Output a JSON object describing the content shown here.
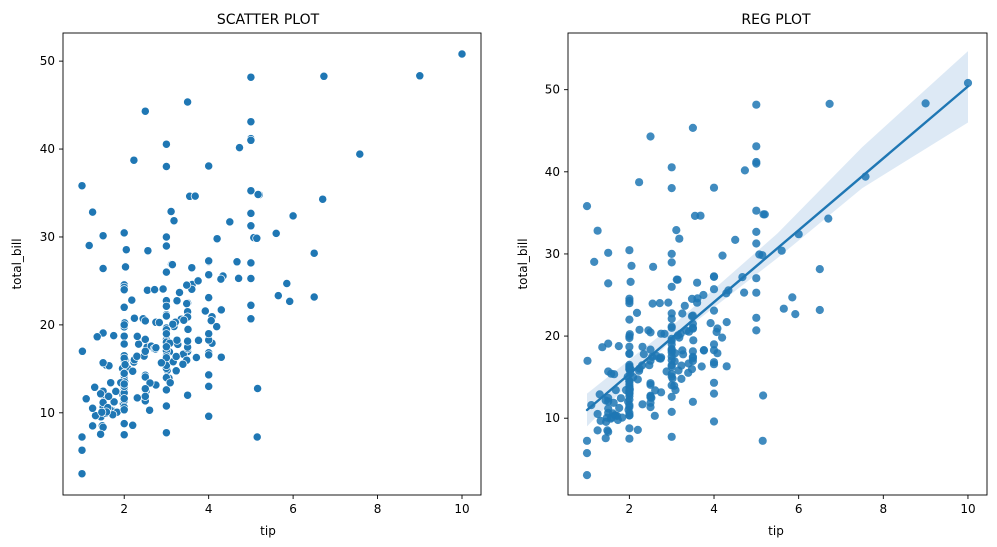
{
  "chart_data": [
    {
      "type": "scatter",
      "title": "SCATTER PLOT",
      "xlabel": "tip",
      "ylabel": "total_bill",
      "xlim": [
        0.55,
        10.45
      ],
      "ylim": [
        0.65,
        53.2
      ],
      "xticks": [
        "2",
        "4",
        "6",
        "8",
        "10"
      ],
      "yticks": [
        "10",
        "20",
        "30",
        "40",
        "50"
      ],
      "grid": false,
      "color": "#1f77b4",
      "marker_edge": "#ffffff",
      "regression": null,
      "points": []
    },
    {
      "type": "scatter",
      "title": "REG PLOT",
      "xlabel": "tip",
      "ylabel": "total_bill",
      "xlim": [
        0.55,
        10.45
      ],
      "ylim": [
        0.65,
        56.9
      ],
      "xticks": [
        "2",
        "4",
        "6",
        "8",
        "10"
      ],
      "yticks": [
        "10",
        "20",
        "30",
        "40",
        "50"
      ],
      "grid": false,
      "color": "#1f77b4",
      "marker_edge": "#1f77b4",
      "regression": {
        "x": [
          1.0,
          10.0
        ],
        "y": [
          11.0,
          50.4
        ],
        "ci_lower": [
          [
            1.0,
            9.0
          ],
          [
            3.0,
            19.5
          ],
          [
            5.5,
            29.5
          ],
          [
            7.5,
            38.0
          ],
          [
            10.0,
            46.0
          ]
        ],
        "ci_upper": [
          [
            1.0,
            13.0
          ],
          [
            3.0,
            21.2
          ],
          [
            5.5,
            32.5
          ],
          [
            7.5,
            43.0
          ],
          [
            10.0,
            54.7
          ]
        ],
        "line_color": "#1f77b4",
        "band_color": "#c6dbef"
      },
      "points": []
    }
  ],
  "shared_points": [
    [
      1.01,
      16.99
    ],
    [
      1.66,
      10.34
    ],
    [
      3.5,
      21.01
    ],
    [
      3.31,
      23.68
    ],
    [
      3.61,
      24.59
    ],
    [
      4.71,
      25.29
    ],
    [
      2.0,
      8.77
    ],
    [
      3.12,
      26.88
    ],
    [
      1.96,
      15.04
    ],
    [
      3.23,
      14.78
    ],
    [
      1.71,
      10.27
    ],
    [
      5.0,
      35.26
    ],
    [
      1.57,
      15.42
    ],
    [
      3.0,
      18.43
    ],
    [
      3.02,
      14.83
    ],
    [
      3.92,
      21.58
    ],
    [
      1.67,
      10.33
    ],
    [
      3.71,
      16.29
    ],
    [
      3.5,
      16.97
    ],
    [
      3.35,
      20.65
    ],
    [
      4.08,
      17.92
    ],
    [
      2.75,
      20.29
    ],
    [
      2.23,
      15.77
    ],
    [
      7.58,
      39.42
    ],
    [
      3.18,
      19.82
    ],
    [
      2.34,
      17.81
    ],
    [
      2.0,
      13.37
    ],
    [
      2.0,
      12.69
    ],
    [
      4.3,
      21.7
    ],
    [
      3.0,
      19.65
    ],
    [
      1.45,
      9.55
    ],
    [
      2.5,
      18.35
    ],
    [
      3.0,
      15.06
    ],
    [
      2.45,
      20.69
    ],
    [
      3.27,
      17.78
    ],
    [
      3.6,
      24.06
    ],
    [
      2.0,
      16.31
    ],
    [
      3.07,
      16.93
    ],
    [
      2.31,
      18.69
    ],
    [
      5.0,
      31.27
    ],
    [
      2.24,
      16.04
    ],
    [
      2.54,
      17.46
    ],
    [
      3.06,
      13.94
    ],
    [
      1.32,
      9.68
    ],
    [
      5.6,
      30.4
    ],
    [
      3.0,
      18.29
    ],
    [
      5.0,
      22.23
    ],
    [
      6.0,
      32.4
    ],
    [
      2.05,
      28.55
    ],
    [
      3.0,
      18.04
    ],
    [
      2.5,
      12.54
    ],
    [
      2.6,
      10.29
    ],
    [
      5.2,
      34.81
    ],
    [
      1.56,
      9.94
    ],
    [
      4.34,
      25.56
    ],
    [
      3.51,
      19.49
    ],
    [
      3.0,
      38.01
    ],
    [
      1.5,
      26.41
    ],
    [
      1.76,
      11.24
    ],
    [
      6.73,
      48.27
    ],
    [
      3.21,
      20.29
    ],
    [
      2.0,
      13.81
    ],
    [
      1.98,
      11.02
    ],
    [
      3.76,
      18.29
    ],
    [
      2.64,
      17.59
    ],
    [
      3.15,
      20.08
    ],
    [
      2.47,
      16.45
    ],
    [
      1.0,
      3.07
    ],
    [
      2.01,
      20.23
    ],
    [
      2.09,
      15.01
    ],
    [
      1.97,
      12.02
    ],
    [
      3.0,
      17.07
    ],
    [
      3.14,
      26.86
    ],
    [
      5.0,
      25.28
    ],
    [
      2.2,
      14.73
    ],
    [
      1.25,
      10.51
    ],
    [
      3.08,
      17.92
    ],
    [
      4.0,
      27.2
    ],
    [
      3.0,
      22.76
    ],
    [
      2.71,
      17.29
    ],
    [
      3.0,
      19.44
    ],
    [
      3.4,
      16.66
    ],
    [
      1.83,
      10.07
    ],
    [
      5.0,
      32.68
    ],
    [
      2.03,
      15.98
    ],
    [
      5.17,
      34.83
    ],
    [
      2.0,
      13.03
    ],
    [
      4.0,
      18.28
    ],
    [
      5.85,
      24.71
    ],
    [
      3.0,
      21.16
    ],
    [
      3.0,
      28.97
    ],
    [
      3.5,
      22.49
    ],
    [
      1.0,
      5.75
    ],
    [
      4.3,
      16.32
    ],
    [
      3.25,
      22.75
    ],
    [
      4.73,
      40.17
    ],
    [
      4.0,
      27.28
    ],
    [
      1.5,
      12.03
    ],
    [
      3.0,
      21.01
    ],
    [
      1.5,
      12.46
    ],
    [
      2.5,
      11.35
    ],
    [
      3.0,
      15.38
    ],
    [
      2.5,
      44.3
    ],
    [
      3.48,
      22.42
    ],
    [
      4.08,
      20.92
    ],
    [
      1.64,
      15.36
    ],
    [
      4.06,
      20.49
    ],
    [
      4.29,
      25.21
    ],
    [
      3.76,
      18.24
    ],
    [
      4.0,
      14.31
    ],
    [
      3.0,
      14.0
    ],
    [
      1.0,
      7.25
    ],
    [
      4.0,
      38.07
    ],
    [
      2.55,
      23.95
    ],
    [
      4.0,
      25.71
    ],
    [
      3.5,
      17.31
    ],
    [
      5.07,
      29.93
    ],
    [
      1.5,
      10.65
    ],
    [
      1.8,
      12.43
    ],
    [
      2.92,
      24.08
    ],
    [
      2.31,
      11.69
    ],
    [
      1.68,
      13.42
    ],
    [
      2.5,
      14.26
    ],
    [
      2.0,
      15.95
    ],
    [
      2.52,
      12.48
    ],
    [
      4.2,
      29.8
    ],
    [
      1.48,
      8.52
    ],
    [
      2.0,
      14.52
    ],
    [
      2.0,
      11.38
    ],
    [
      2.18,
      22.82
    ],
    [
      1.5,
      19.08
    ],
    [
      2.83,
      20.27
    ],
    [
      1.5,
      11.17
    ],
    [
      2.0,
      12.26
    ],
    [
      3.25,
      18.26
    ],
    [
      1.25,
      8.51
    ],
    [
      2.0,
      10.33
    ],
    [
      2.0,
      14.15
    ],
    [
      2.0,
      16.0
    ],
    [
      2.75,
      13.16
    ],
    [
      3.5,
      17.47
    ],
    [
      6.7,
      34.3
    ],
    [
      5.0,
      41.19
    ],
    [
      5.0,
      27.05
    ],
    [
      2.3,
      16.43
    ],
    [
      1.5,
      8.35
    ],
    [
      1.36,
      18.64
    ],
    [
      1.63,
      11.87
    ],
    [
      1.73,
      9.78
    ],
    [
      2.0,
      7.51
    ],
    [
      2.5,
      14.07
    ],
    [
      2.0,
      13.13
    ],
    [
      2.74,
      17.26
    ],
    [
      2.0,
      24.55
    ],
    [
      2.0,
      19.77
    ],
    [
      5.14,
      29.85
    ],
    [
      5.0,
      48.17
    ],
    [
      3.75,
      25.0
    ],
    [
      2.61,
      13.39
    ],
    [
      2.0,
      16.49
    ],
    [
      3.5,
      21.5
    ],
    [
      2.5,
      12.66
    ],
    [
      2.0,
      16.21
    ],
    [
      2.0,
      13.81
    ],
    [
      3.0,
      17.51
    ],
    [
      3.48,
      24.52
    ],
    [
      2.24,
      20.76
    ],
    [
      4.5,
      31.71
    ],
    [
      1.61,
      10.59
    ],
    [
      2.0,
      10.63
    ],
    [
      10.0,
      50.81
    ],
    [
      3.16,
      15.81
    ],
    [
      5.15,
      7.25
    ],
    [
      3.18,
      31.85
    ],
    [
      4.0,
      16.82
    ],
    [
      3.11,
      32.9
    ],
    [
      2.0,
      17.89
    ],
    [
      2.0,
      14.48
    ],
    [
      4.0,
      9.6
    ],
    [
      3.55,
      34.63
    ],
    [
      3.68,
      34.65
    ],
    [
      5.65,
      23.33
    ],
    [
      3.5,
      45.35
    ],
    [
      6.5,
      23.17
    ],
    [
      3.0,
      40.55
    ],
    [
      5.0,
      20.69
    ],
    [
      3.5,
      20.9
    ],
    [
      2.0,
      30.46
    ],
    [
      3.5,
      18.15
    ],
    [
      4.0,
      23.1
    ],
    [
      1.5,
      15.69
    ],
    [
      4.19,
      19.81
    ],
    [
      2.56,
      28.44
    ],
    [
      2.02,
      15.48
    ],
    [
      4.0,
      16.58
    ],
    [
      1.44,
      7.56
    ],
    [
      2.0,
      10.34
    ],
    [
      5.0,
      43.11
    ],
    [
      2.0,
      13.0
    ],
    [
      2.01,
      13.51
    ],
    [
      2.0,
      18.71
    ],
    [
      2.5,
      12.74
    ],
    [
      4.0,
      13.0
    ],
    [
      3.23,
      16.4
    ],
    [
      3.41,
      20.53
    ],
    [
      3.0,
      16.47
    ],
    [
      2.03,
      26.59
    ],
    [
      2.23,
      38.73
    ],
    [
      2.0,
      24.27
    ],
    [
      5.16,
      12.76
    ],
    [
      9.0,
      48.33
    ],
    [
      2.5,
      11.87
    ],
    [
      6.5,
      28.15
    ],
    [
      1.1,
      11.59
    ],
    [
      3.0,
      7.74
    ],
    [
      1.5,
      30.14
    ],
    [
      1.44,
      12.16
    ],
    [
      3.09,
      13.42
    ],
    [
      2.2,
      8.58
    ],
    [
      3.48,
      15.98
    ],
    [
      1.92,
      13.42
    ],
    [
      3.0,
      16.27
    ],
    [
      1.58,
      10.09
    ],
    [
      2.5,
      20.45
    ],
    [
      2.0,
      13.28
    ],
    [
      3.0,
      22.12
    ],
    [
      2.72,
      24.01
    ],
    [
      2.88,
      15.69
    ],
    [
      2.0,
      11.61
    ],
    [
      3.0,
      10.77
    ],
    [
      3.39,
      15.53
    ],
    [
      1.47,
      10.07
    ],
    [
      3.0,
      12.6
    ],
    [
      1.25,
      32.83
    ],
    [
      1.0,
      35.83
    ],
    [
      1.17,
      29.03
    ],
    [
      4.67,
      27.18
    ],
    [
      5.92,
      22.67
    ],
    [
      2.0,
      17.82
    ],
    [
      1.75,
      18.78
    ],
    [
      3.0,
      26.0
    ],
    [
      2.0,
      24.0
    ],
    [
      4.0,
      19.0
    ],
    [
      2.5,
      17.0
    ],
    [
      1.3,
      12.9
    ],
    [
      3.5,
      12.0
    ],
    [
      3.6,
      26.5
    ],
    [
      2.75,
      17.4
    ],
    [
      2.0,
      20.0
    ],
    [
      3.0,
      19.0
    ],
    [
      5.0,
      41.0
    ],
    [
      2.0,
      22.0
    ],
    [
      3.0,
      30.0
    ]
  ]
}
